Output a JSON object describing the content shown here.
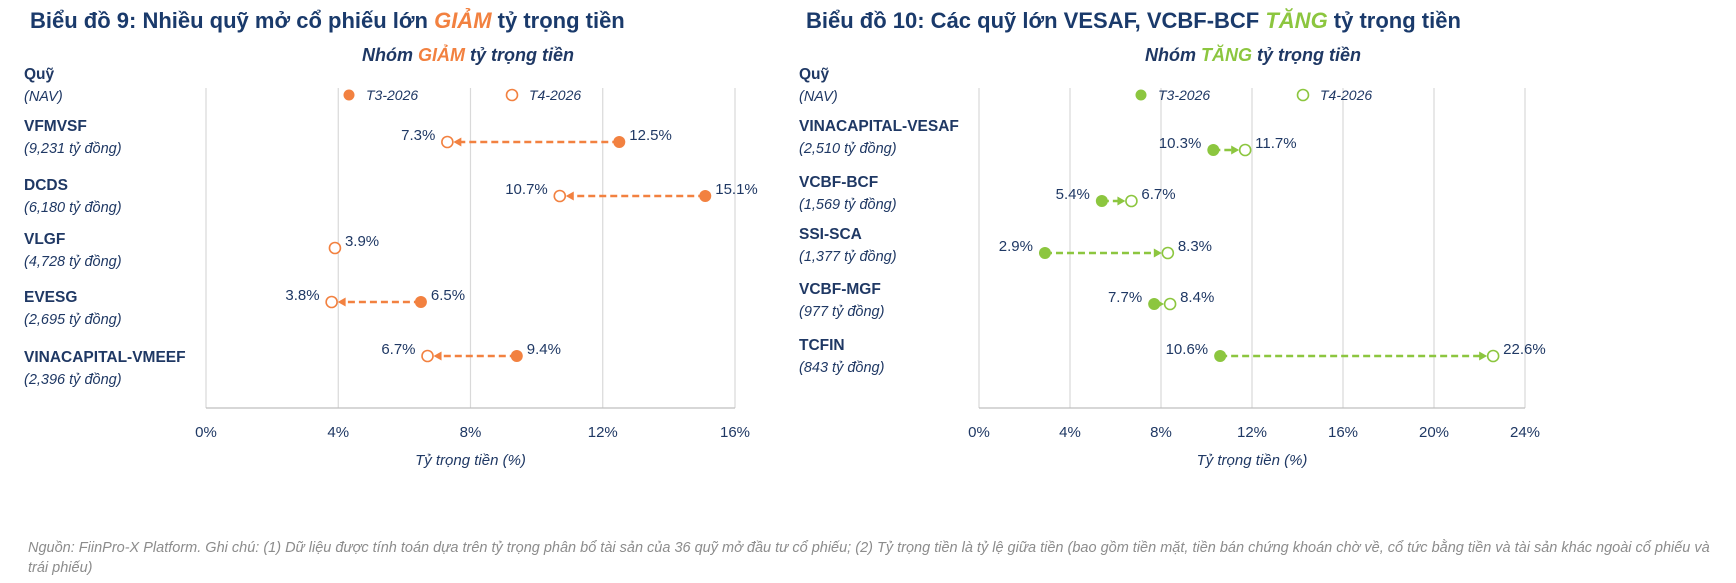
{
  "chart_data": [
    {
      "type": "dumbbell",
      "title_parts": [
        "Biểu đồ 9: Nhiều quỹ mở cổ phiếu lớn ",
        "GIẢM",
        " tỷ trọng tiền"
      ],
      "subtitle_parts": [
        "Nhóm ",
        "GIẢM",
        " tỷ trọng tiền"
      ],
      "y_header": "Quỹ",
      "y_header_sub": "(NAV)",
      "legend": [
        "T3-2026",
        "T4-2026"
      ],
      "color": "#f28140",
      "xlabel": "Tỷ trọng tiền (%)",
      "xlim": [
        0,
        16
      ],
      "xticks": [
        "0%",
        "4%",
        "8%",
        "12%",
        "16%"
      ],
      "tick_values": [
        0,
        4,
        8,
        12,
        16
      ],
      "funds": [
        {
          "name": "VFMVSF",
          "nav": "(9,231 tỷ đồng)",
          "t3": 12.5,
          "t4": 7.3,
          "t3_label": "12.5%",
          "t4_label": "7.3%"
        },
        {
          "name": "DCDS",
          "nav": "(6,180 tỷ đồng)",
          "t3": 15.1,
          "t4": 10.7,
          "t3_label": "15.1%",
          "t4_label": "10.7%"
        },
        {
          "name": "VLGF",
          "nav": "(4,728 tỷ đồng)",
          "t3": 3.9,
          "t4": 3.9,
          "t3_label": "",
          "t4_label": "3.9%"
        },
        {
          "name": "EVESG",
          "nav": "(2,695 tỷ đồng)",
          "t3": 6.5,
          "t4": 3.8,
          "t3_label": "6.5%",
          "t4_label": "3.8%"
        },
        {
          "name": "VINACAPITAL-VMEEF",
          "nav": "(2,396 tỷ đồng)",
          "t3": 9.4,
          "t4": 6.7,
          "t3_label": "9.4%",
          "t4_label": "6.7%"
        }
      ]
    },
    {
      "type": "dumbbell",
      "title_parts": [
        "Biểu đồ 10: Các quỹ lớn VESAF, VCBF-BCF ",
        "TĂNG",
        " tỷ trọng tiền"
      ],
      "subtitle_parts": [
        "Nhóm ",
        "TĂNG",
        " tỷ trọng tiền"
      ],
      "y_header": "Quỹ",
      "y_header_sub": "(NAV)",
      "legend": [
        "T3-2026",
        "T4-2026"
      ],
      "color": "#8cc63f",
      "xlabel": "Tỷ trọng tiền (%)",
      "xlim": [
        0,
        24
      ],
      "xticks": [
        "0%",
        "4%",
        "8%",
        "12%",
        "16%",
        "20%",
        "24%"
      ],
      "tick_values": [
        0,
        4,
        8,
        12,
        16,
        20,
        24
      ],
      "funds": [
        {
          "name": "VINACAPITAL-VESAF",
          "nav": "(2,510 tỷ đồng)",
          "t3": 10.3,
          "t4": 11.7,
          "t3_label": "10.3%",
          "t4_label": "11.7%"
        },
        {
          "name": "VCBF-BCF",
          "nav": "(1,569 tỷ đồng)",
          "t3": 5.4,
          "t4": 6.7,
          "t3_label": "5.4%",
          "t4_label": "6.7%"
        },
        {
          "name": "SSI-SCA",
          "nav": "(1,377 tỷ đồng)",
          "t3": 2.9,
          "t4": 8.3,
          "t3_label": "2.9%",
          "t4_label": "8.3%"
        },
        {
          "name": "VCBF-MGF",
          "nav": "(977 tỷ đồng)",
          "t3": 7.7,
          "t4": 8.4,
          "t3_label": "7.7%",
          "t4_label": "8.4%"
        },
        {
          "name": "TCFIN",
          "nav": "(843 tỷ đồng)",
          "t3": 10.6,
          "t4": 22.6,
          "t3_label": "10.6%",
          "t4_label": "22.6%"
        }
      ]
    }
  ],
  "footnote": "Nguồn: FiinPro-X Platform. Ghi chú: (1) Dữ liệu được tính toán dựa trên tỷ trọng phân bổ tài sản của 36 quỹ mở đầu tư cổ phiếu; (2) Tỷ trọng tiền là tỷ lệ giữa tiền (bao gồm tiền mặt, tiền bán chứng khoán chờ về, cổ tức bằng tiền và tài sản khác ngoài cổ phiếu và trái phiếu)"
}
